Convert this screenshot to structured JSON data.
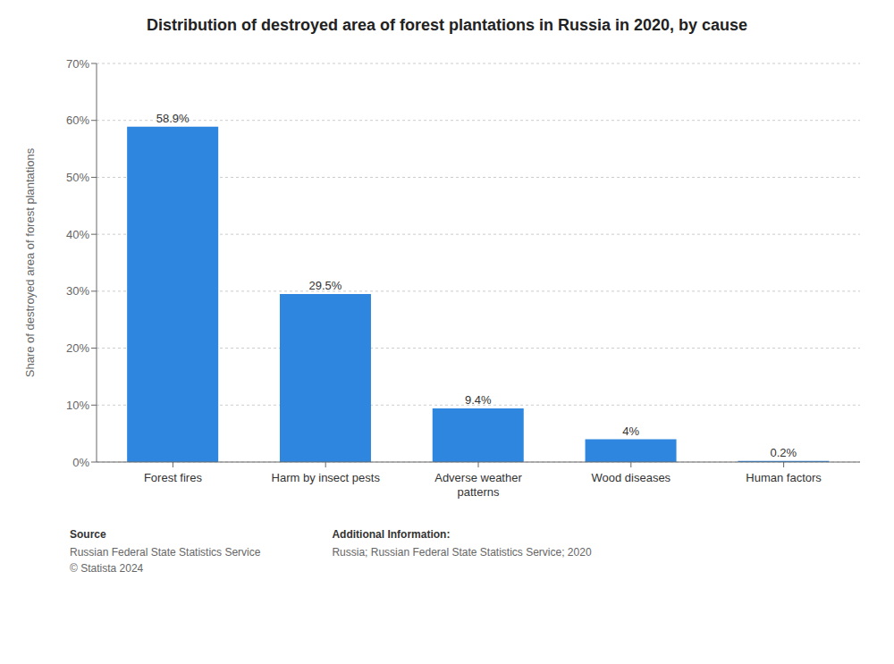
{
  "chart_data": {
    "type": "bar",
    "title": "Distribution of destroyed area of forest plantations in Russia in 2020, by cause",
    "categories": [
      "Forest fires",
      "Harm by insect pests",
      "Adverse weather\npatterns",
      "Wood diseases",
      "Human factors"
    ],
    "values": [
      58.9,
      29.5,
      9.4,
      4.0,
      0.2
    ],
    "value_labels": [
      "58.9%",
      "29.5%",
      "9.4%",
      "4%",
      "0.2%"
    ],
    "data_labels": true,
    "color": "#2e86de",
    "ylabel": "Share of destroyed area of forest plantations",
    "ylim": [
      0,
      70
    ],
    "yticks": [
      {
        "value": 0,
        "label": "0%"
      },
      {
        "value": 10,
        "label": "10%"
      },
      {
        "value": 20,
        "label": "20%"
      },
      {
        "value": 30,
        "label": "30%"
      },
      {
        "value": 40,
        "label": "40%"
      },
      {
        "value": 50,
        "label": "50%"
      },
      {
        "value": 60,
        "label": "60%"
      },
      {
        "value": 70,
        "label": "70%"
      }
    ],
    "grid": true,
    "annotations": [
      {
        "heading": "Source",
        "text": [
          "Russian Federal State Statistics Service",
          "© Statista 2024"
        ]
      },
      {
        "heading": "Additional Information:",
        "text": [
          "Russia; Russian Federal State Statistics Service; 2020"
        ]
      }
    ]
  }
}
